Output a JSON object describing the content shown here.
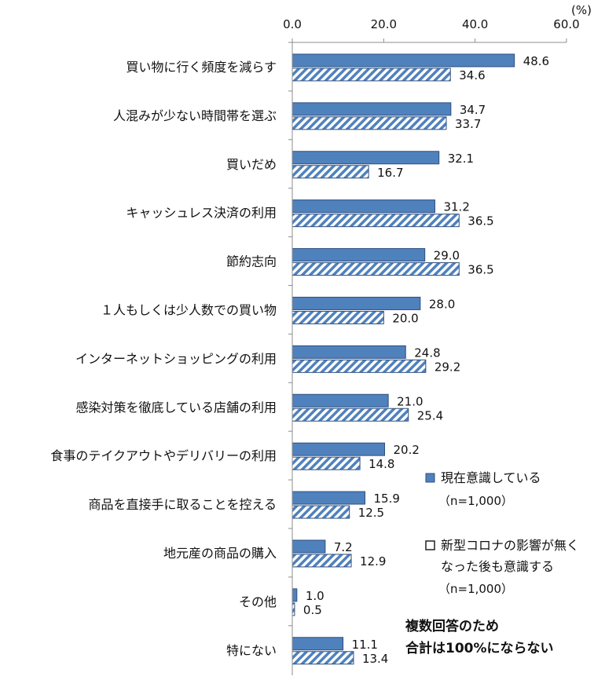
{
  "chart_data": {
    "type": "bar",
    "orientation": "horizontal",
    "unit_label": "(%)",
    "xlim": [
      0,
      60
    ],
    "ticks": [
      "0.0",
      "20.0",
      "40.0",
      "60.0"
    ],
    "tick_values": [
      0,
      20,
      40,
      60
    ],
    "categories": [
      "買い物に行く頻度を減らす",
      "人混みが少ない時間帯を選ぶ",
      "買いだめ",
      "キャッシュレス決済の利用",
      "節約志向",
      "１人もしくは少人数での買い物",
      "インターネットショッピングの利用",
      "感染対策を徹底している店舗の利用",
      "食事のテイクアウトやデリバリーの利用",
      "商品を直接手に取ることを控える",
      "地元産の商品の購入",
      "その他",
      "特にない"
    ],
    "series": [
      {
        "name": "現在意識している",
        "note": "（n=1,000）",
        "style": "solid",
        "color": "#4f81bd",
        "values": [
          48.6,
          34.7,
          32.1,
          31.2,
          29.0,
          28.0,
          24.8,
          21.0,
          20.2,
          15.9,
          7.2,
          1.0,
          11.1
        ],
        "labels": [
          "48.6",
          "34.7",
          "32.1",
          "31.2",
          "29.0",
          "28.0",
          "24.8",
          "21.0",
          "20.2",
          "15.9",
          "7.2",
          "1.0",
          "11.1"
        ]
      },
      {
        "name": "新型コロナの影響が無くなった後も意識する",
        "name_lines": [
          "新型コロナの影響が無く",
          "なった後も意識する"
        ],
        "note": "（n=1,000）",
        "style": "hatched",
        "color": "#4f81bd",
        "values": [
          34.6,
          33.7,
          16.7,
          36.5,
          36.5,
          20.0,
          29.2,
          25.4,
          14.8,
          12.5,
          12.9,
          0.5,
          13.4
        ],
        "labels": [
          "34.6",
          "33.7",
          "16.7",
          "36.5",
          "36.5",
          "20.0",
          "29.2",
          "25.4",
          "14.8",
          "12.5",
          "12.9",
          "0.5",
          "13.4"
        ]
      }
    ],
    "legend_position": "right-middle",
    "annotation": [
      "複数回答のため",
      "合計は100%にならない"
    ],
    "grid": false
  }
}
